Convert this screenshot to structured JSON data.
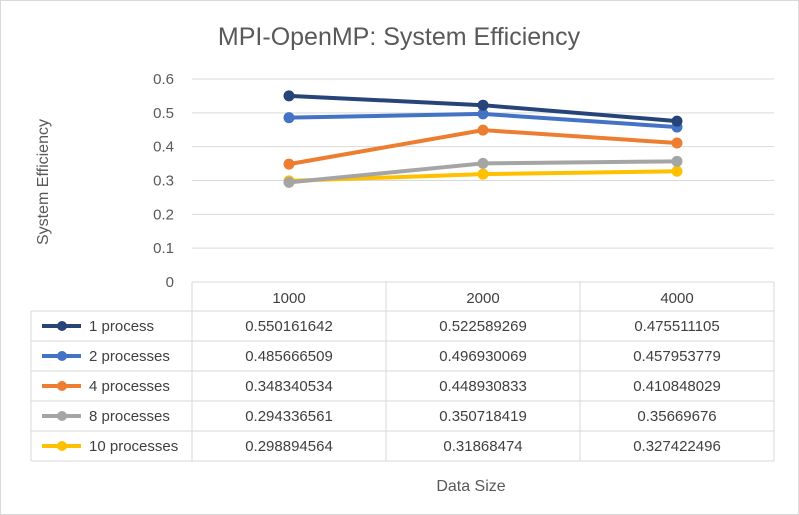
{
  "chart_data": {
    "type": "line",
    "title": "MPI-OpenMP: System Efficiency",
    "xlabel": "Data Size",
    "ylabel": "System Efficiency",
    "categories": [
      "1000",
      "2000",
      "4000"
    ],
    "ylim": [
      0,
      0.6
    ],
    "yticks": [
      "0",
      "0.1",
      "0.2",
      "0.3",
      "0.4",
      "0.5",
      "0.6"
    ],
    "grid": true,
    "legend": "data-table",
    "series": [
      {
        "name": "1 process",
        "color": "#264478",
        "values": [
          0.550161642,
          0.522589269,
          0.475511105
        ],
        "labels": [
          "0.550161642",
          "0.522589269",
          "0.475511105"
        ]
      },
      {
        "name": "2 processes",
        "color": "#4472C4",
        "values": [
          0.485666509,
          0.496930069,
          0.457953779
        ],
        "labels": [
          "0.485666509",
          "0.496930069",
          "0.457953779"
        ]
      },
      {
        "name": "4 processes",
        "color": "#ED7D31",
        "values": [
          0.348340534,
          0.448930833,
          0.410848029
        ],
        "labels": [
          "0.348340534",
          "0.448930833",
          "0.410848029"
        ]
      },
      {
        "name": "8 processes",
        "color": "#A5A5A5",
        "values": [
          0.294336561,
          0.350718419,
          0.35669676
        ],
        "labels": [
          "0.294336561",
          "0.350718419",
          "0.35669676"
        ]
      },
      {
        "name": "10 processes",
        "color": "#FFC000",
        "values": [
          0.298894564,
          0.31868474,
          0.327422496
        ],
        "labels": [
          "0.298894564",
          "0.31868474",
          "0.327422496"
        ]
      }
    ]
  }
}
